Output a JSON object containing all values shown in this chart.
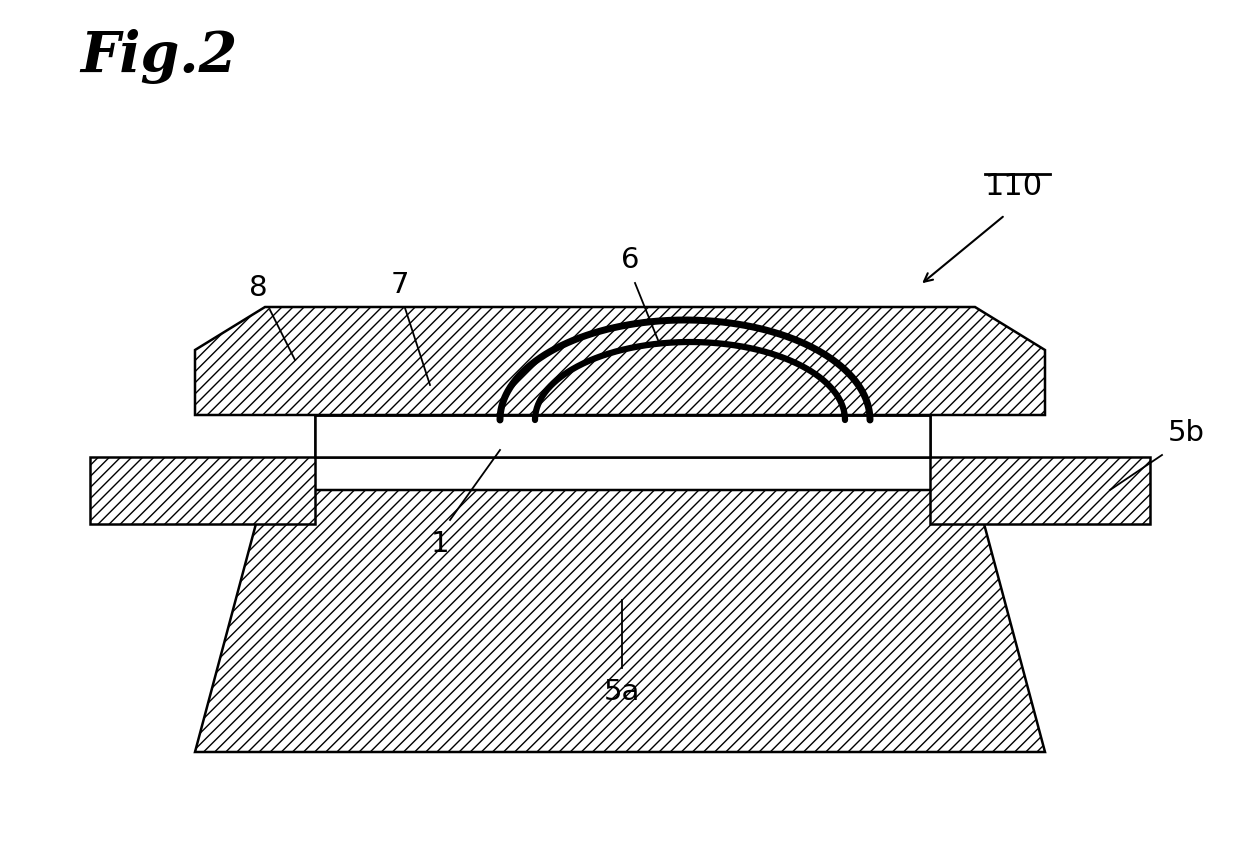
{
  "title": "Fig.2",
  "bg_color": "#ffffff",
  "fig_width": 12.4,
  "fig_height": 8.48,
  "label_110": "110",
  "label_1": "1",
  "label_5a": "5a",
  "label_5b": "5b",
  "label_6": "6",
  "label_7": "7",
  "label_8": "8"
}
